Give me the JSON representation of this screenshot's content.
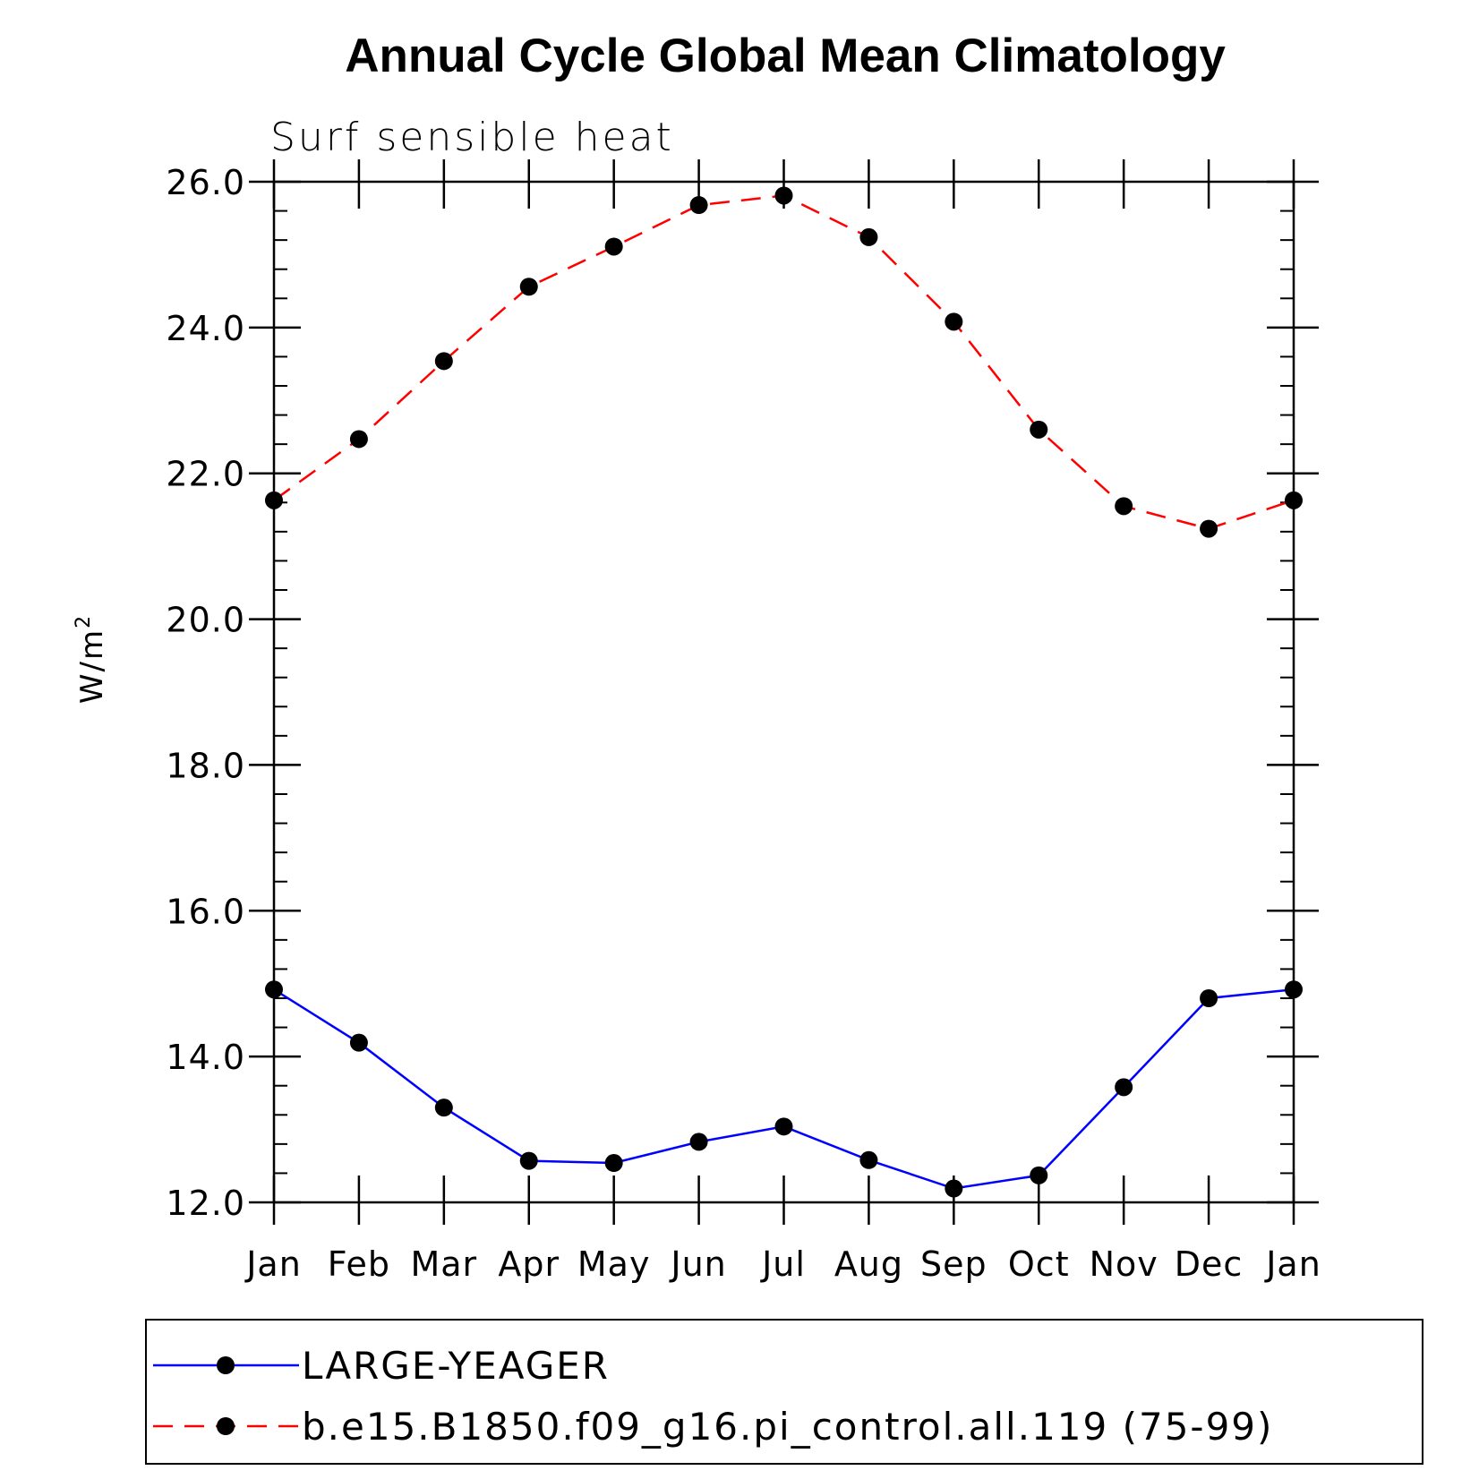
{
  "chart_data": {
    "type": "line",
    "title": "Annual Cycle Global Mean Climatology",
    "subtitle": "Surf sensible heat",
    "ylabel": "W/m",
    "ylabel_superscript": "2",
    "xlabel": "",
    "categories": [
      "Jan",
      "Feb",
      "Mar",
      "Apr",
      "May",
      "Jun",
      "Jul",
      "Aug",
      "Sep",
      "Oct",
      "Nov",
      "Dec",
      "Jan"
    ],
    "ylim": [
      12.0,
      26.0
    ],
    "yticks": [
      "12.0",
      "14.0",
      "16.0",
      "18.0",
      "20.0",
      "22.0",
      "24.0",
      "26.0"
    ],
    "ytick_values": [
      12,
      14,
      16,
      18,
      20,
      22,
      24,
      26
    ],
    "series": [
      {
        "name": "LARGE-YEAGER",
        "color": "#0000ff",
        "dash": "solid",
        "values": [
          14.92,
          14.19,
          13.3,
          12.57,
          12.54,
          12.83,
          13.04,
          12.58,
          12.19,
          12.37,
          13.58,
          14.8,
          14.92
        ]
      },
      {
        "name": "b.e15.B1850.f09_g16.pi_control.all.119 (75-99)",
        "color": "#ff0000",
        "dash": "dashed",
        "values": [
          21.63,
          22.47,
          23.54,
          24.56,
          25.11,
          25.68,
          25.81,
          25.24,
          24.08,
          22.6,
          21.55,
          21.24,
          21.63
        ]
      }
    ],
    "legend_position": "bottom"
  }
}
